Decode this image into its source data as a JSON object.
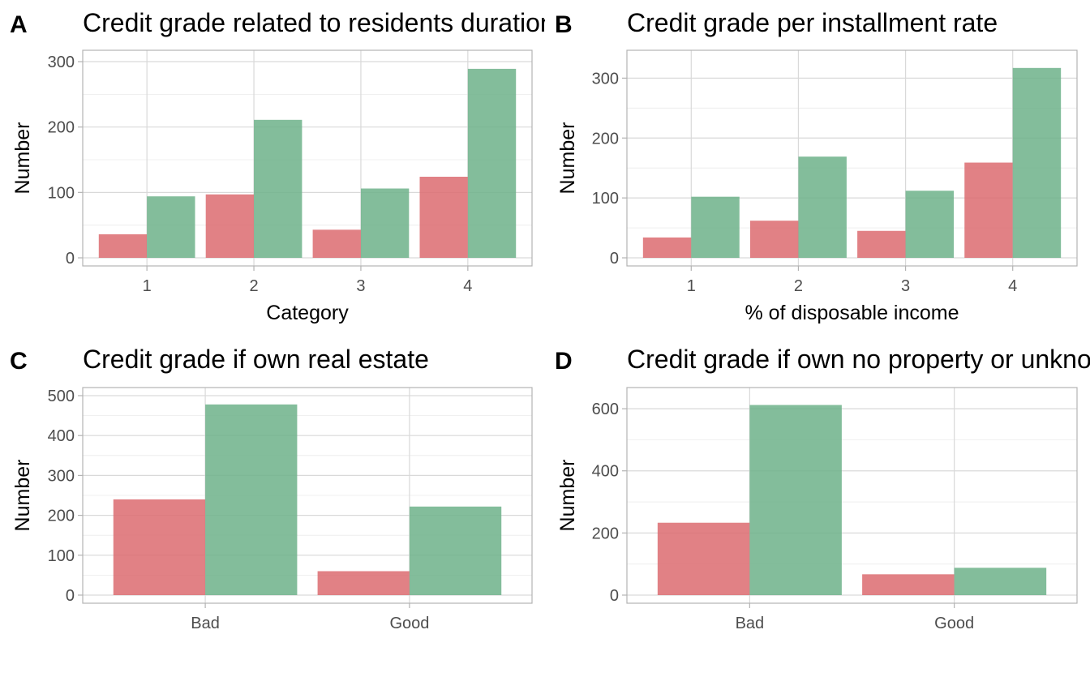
{
  "colors": {
    "bad": "#dc6b70",
    "good": "#6db28a"
  },
  "chart_data": [
    {
      "panel": "A",
      "type": "bar",
      "title": "Credit grade related to residents duration",
      "xlabel": "Category",
      "ylabel": "Number",
      "categories": [
        "1",
        "2",
        "3",
        "4"
      ],
      "series": [
        {
          "values": [
            36,
            97,
            43,
            124
          ]
        },
        {
          "values": [
            94,
            211,
            106,
            289
          ]
        }
      ],
      "ylim": [
        0,
        305
      ],
      "yticks": [
        0,
        100,
        200,
        300
      ],
      "grid": true
    },
    {
      "panel": "B",
      "type": "bar",
      "title": "Credit grade per installment rate",
      "xlabel": "% of disposable income",
      "ylabel": "Number",
      "categories": [
        "1",
        "2",
        "3",
        "4"
      ],
      "series": [
        {
          "values": [
            34,
            62,
            45,
            159
          ]
        },
        {
          "values": [
            102,
            169,
            112,
            317
          ]
        }
      ],
      "ylim": [
        0,
        333
      ],
      "yticks": [
        0,
        100,
        200,
        300
      ],
      "grid": true
    },
    {
      "panel": "C",
      "type": "bar",
      "title": "Credit grade if own real estate",
      "xlabel": "",
      "ylabel": "Number",
      "categories": [
        "Bad",
        "Good"
      ],
      "series": [
        {
          "values": [
            240,
            60
          ]
        },
        {
          "values": [
            478,
            222
          ]
        }
      ],
      "ylim": [
        0,
        500
      ],
      "yticks": [
        0,
        100,
        200,
        300,
        400,
        500
      ],
      "grid": true
    },
    {
      "panel": "D",
      "type": "bar",
      "title": "Credit grade if own no property or unknown",
      "xlabel": "",
      "ylabel": "Number",
      "categories": [
        "Bad",
        "Good"
      ],
      "series": [
        {
          "values": [
            233,
            67
          ]
        },
        {
          "values": [
            612,
            88
          ]
        }
      ],
      "ylim": [
        0,
        642
      ],
      "yticks": [
        0,
        200,
        400,
        600
      ],
      "grid": true
    }
  ]
}
